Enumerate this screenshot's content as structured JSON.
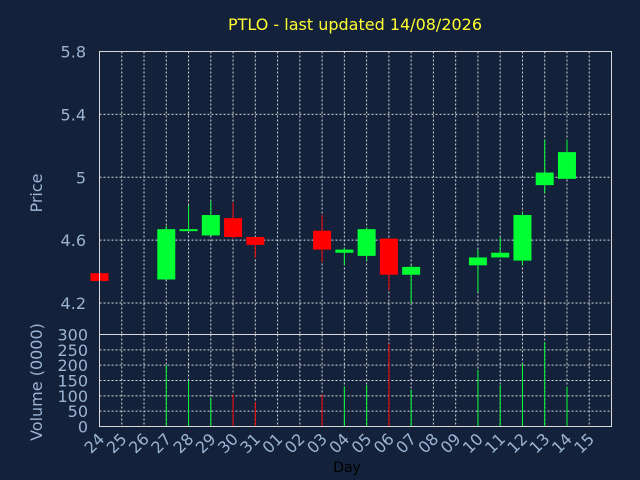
{
  "chart_data": {
    "type": "candlestick",
    "title": "PTLO - last updated 14/08/2026",
    "ylabel": "Price",
    "volume_label": "Volume (0000)",
    "xlabel": "Day",
    "ylim": [
      4.0,
      5.8
    ],
    "yticks": [
      "4.2",
      "4.6",
      "5",
      "5.4",
      "5.8"
    ],
    "volume_ylim": [
      0,
      300
    ],
    "volume_ticks": [
      "0",
      "50",
      "100",
      "150",
      "200",
      "250",
      "300"
    ],
    "categories": [
      "24",
      "25",
      "26",
      "27",
      "28",
      "29",
      "30",
      "31",
      "01",
      "02",
      "03",
      "04",
      "05",
      "06",
      "07",
      "08",
      "09",
      "10",
      "11",
      "12",
      "13",
      "14",
      "15"
    ],
    "colors": {
      "up": "#00ff33",
      "down": "#ff0000",
      "background": "#13213a",
      "title": "#ffff33",
      "axis_text": "#9cb4d4",
      "grid": "#d8d8d8"
    },
    "candles": [
      {
        "day": "24",
        "open": 4.39,
        "high": 4.39,
        "low": 4.34,
        "close": 4.34,
        "volume": 0
      },
      {
        "day": "27",
        "open": 4.35,
        "high": 4.69,
        "low": 4.35,
        "close": 4.67,
        "volume": 200
      },
      {
        "day": "28",
        "open": 4.66,
        "high": 4.82,
        "low": 4.66,
        "close": 4.67,
        "volume": 150
      },
      {
        "day": "29",
        "open": 4.63,
        "high": 4.85,
        "low": 4.63,
        "close": 4.76,
        "volume": 95
      },
      {
        "day": "30",
        "open": 4.74,
        "high": 4.84,
        "low": 4.61,
        "close": 4.62,
        "volume": 105
      },
      {
        "day": "31",
        "open": 4.62,
        "high": 4.62,
        "low": 4.49,
        "close": 4.57,
        "volume": 80
      },
      {
        "day": "03",
        "open": 4.66,
        "high": 4.76,
        "low": 4.46,
        "close": 4.54,
        "volume": 105
      },
      {
        "day": "04",
        "open": 4.52,
        "high": 4.55,
        "low": 4.44,
        "close": 4.54,
        "volume": 130
      },
      {
        "day": "05",
        "open": 4.5,
        "high": 4.68,
        "low": 4.47,
        "close": 4.67,
        "volume": 135
      },
      {
        "day": "06",
        "open": 4.61,
        "high": 4.61,
        "low": 4.28,
        "close": 4.38,
        "volume": 270
      },
      {
        "day": "07",
        "open": 4.38,
        "high": 4.44,
        "low": 4.2,
        "close": 4.43,
        "volume": 120
      },
      {
        "day": "10",
        "open": 4.44,
        "high": 4.54,
        "low": 4.27,
        "close": 4.49,
        "volume": 185
      },
      {
        "day": "11",
        "open": 4.49,
        "high": 4.62,
        "low": 4.49,
        "close": 4.52,
        "volume": 135
      },
      {
        "day": "12",
        "open": 4.47,
        "high": 4.78,
        "low": 4.44,
        "close": 4.76,
        "volume": 205
      },
      {
        "day": "13",
        "open": 4.95,
        "high": 5.24,
        "low": 4.9,
        "close": 5.03,
        "volume": 275
      },
      {
        "day": "14",
        "open": 4.99,
        "high": 5.24,
        "low": 4.99,
        "close": 5.16,
        "volume": 130
      }
    ],
    "grid": true
  }
}
